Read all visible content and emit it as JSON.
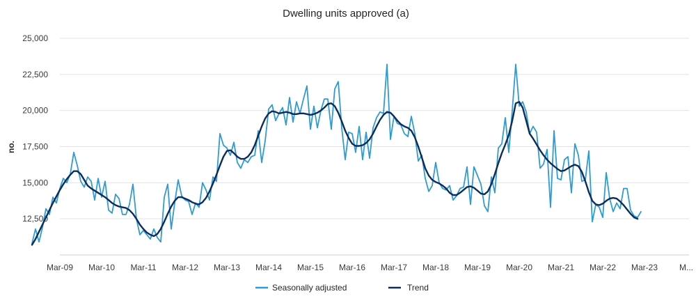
{
  "chart_data": {
    "type": "line",
    "title": "Dwelling units approved (a)",
    "xlabel": "",
    "ylabel": "no.",
    "ylim": [
      10000,
      25000
    ],
    "yticks": [
      12500,
      15000,
      17500,
      20000,
      22500,
      25000
    ],
    "ytick_labels": [
      "12,500",
      "15,000",
      "17,500",
      "20,000",
      "22,500",
      "25,000"
    ],
    "x_start": "Jul-2008",
    "x_interval": "month",
    "xtick_labels": [
      "Mar-09",
      "Mar-10",
      "Mar-11",
      "Mar-12",
      "Mar-13",
      "Mar-14",
      "Mar-15",
      "Mar-16",
      "Mar-17",
      "Mar-18",
      "Mar-19",
      "Mar-20",
      "Mar-21",
      "Mar-22",
      "Mar-23",
      "M..."
    ],
    "legend_position": "bottom",
    "series": [
      {
        "name": "Seasonally adjusted",
        "color": "#2e9bd3",
        "values": [
          10800,
          11800,
          10900,
          11900,
          13200,
          12800,
          14000,
          13600,
          14600,
          15300,
          15000,
          15600,
          17100,
          16200,
          15100,
          14700,
          15400,
          15100,
          13800,
          15300,
          14000,
          15100,
          13100,
          12900,
          14200,
          13900,
          12800,
          12800,
          13500,
          14900,
          12500,
          11400,
          11700,
          11400,
          11100,
          11800,
          11200,
          10900,
          14000,
          14900,
          11800,
          13600,
          15200,
          14100,
          13800,
          13700,
          12800,
          13600,
          13300,
          15000,
          14500,
          13800,
          15400,
          15100,
          18400,
          17600,
          17400,
          16900,
          17800,
          16400,
          16000,
          16600,
          16400,
          16800,
          16900,
          18600,
          16400,
          17900,
          20100,
          20400,
          19300,
          19800,
          20200,
          19000,
          20900,
          19200,
          20600,
          19800,
          20800,
          21700,
          18700,
          20300,
          18800,
          20000,
          20800,
          20800,
          18700,
          21500,
          22000,
          18800,
          16600,
          18500,
          18400,
          17100,
          18900,
          16600,
          18500,
          16700,
          18800,
          19500,
          19900,
          19800,
          23200,
          18000,
          19600,
          19100,
          19000,
          18400,
          18200,
          19600,
          18400,
          16500,
          16900,
          15300,
          14400,
          14800,
          16400,
          15000,
          14600,
          14500,
          14800,
          13800,
          14100,
          14600,
          14700,
          16100,
          13500,
          16100,
          15500,
          14900,
          13400,
          13000,
          15400,
          14300,
          17400,
          17700,
          19500,
          17100,
          20000,
          23200,
          20300,
          20600,
          19900,
          18400,
          18900,
          18500,
          16000,
          16300,
          17300,
          13300,
          18600,
          15300,
          15200,
          16600,
          16800,
          14300,
          17700,
          16900,
          15100,
          15200,
          17200,
          12300,
          13500,
          13300,
          12600,
          15700,
          13900,
          13000,
          13600,
          13200,
          14600,
          14600,
          13100,
          12700,
          12600,
          13000
        ]
      },
      {
        "name": "Trend",
        "color": "#0a2d5e",
        "values": [
          10700,
          11100,
          11600,
          12100,
          12600,
          13100,
          13600,
          14050,
          14500,
          14900,
          15250,
          15550,
          15800,
          15800,
          15600,
          15200,
          14800,
          14600,
          14450,
          14300,
          14150,
          14000,
          13800,
          13600,
          13450,
          13350,
          13300,
          13250,
          13100,
          12850,
          12500,
          12100,
          11800,
          11550,
          11400,
          11300,
          11450,
          11800,
          12300,
          12850,
          13350,
          13750,
          14000,
          14000,
          13900,
          13800,
          13650,
          13550,
          13500,
          13650,
          13950,
          14400,
          14950,
          15550,
          16200,
          16800,
          17200,
          17250,
          17050,
          16800,
          16650,
          16650,
          16800,
          17100,
          17600,
          18250,
          18900,
          19450,
          19800,
          19950,
          19900,
          19800,
          19850,
          19900,
          19850,
          19750,
          19750,
          19800,
          19800,
          19750,
          19700,
          19750,
          19850,
          20000,
          20200,
          20450,
          20500,
          20300,
          19850,
          19250,
          18600,
          18100,
          17700,
          17550,
          17550,
          17600,
          17750,
          18000,
          18400,
          18900,
          19350,
          19700,
          19900,
          19850,
          19600,
          19300,
          19050,
          18900,
          18800,
          18600,
          18150,
          17500,
          16750,
          16000,
          15500,
          15200,
          15050,
          14950,
          14800,
          14600,
          14300,
          14150,
          14150,
          14300,
          14500,
          14700,
          14750,
          14650,
          14450,
          14250,
          14200,
          14400,
          14900,
          15600,
          16350,
          17050,
          17650,
          18300,
          19300,
          20500,
          20600,
          20200,
          19300,
          18400,
          18050,
          17650,
          17250,
          16900,
          16600,
          16350,
          16150,
          15950,
          15800,
          15850,
          16000,
          16150,
          16250,
          16150,
          15750,
          15100,
          14350,
          13750,
          13500,
          13450,
          13550,
          13750,
          13900,
          13950,
          13900,
          13700,
          13450,
          13150,
          12850,
          12600,
          12500
        ]
      }
    ]
  }
}
